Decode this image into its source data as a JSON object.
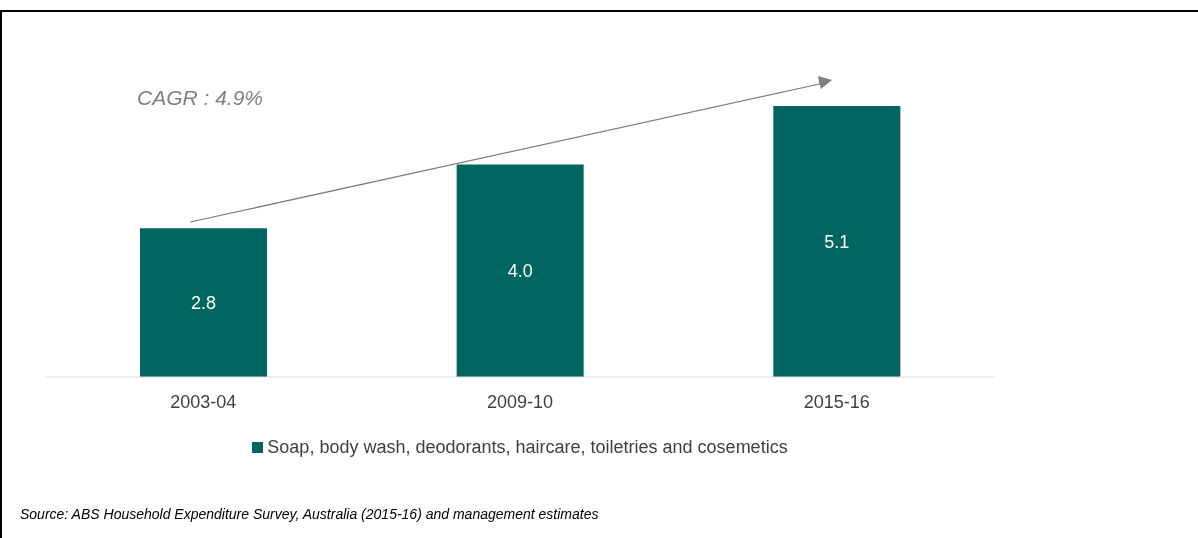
{
  "chart_data": {
    "type": "bar",
    "categories": [
      "2003-04",
      "2009-10",
      "2015-16"
    ],
    "series": [
      {
        "name": "Soap, body wash, deodorants, haircare, toiletries and cosemetics",
        "color": "#00665f",
        "values": [
          2.8,
          4.0,
          5.1
        ],
        "value_labels": [
          "2.8",
          "4.0",
          "5.1"
        ]
      }
    ],
    "legend": "bottom",
    "annotations": [
      "CAGR : 4.9%",
      "Source: ABS Household Expenditure Survey, Australia (2015-16) and management estimates"
    ]
  }
}
